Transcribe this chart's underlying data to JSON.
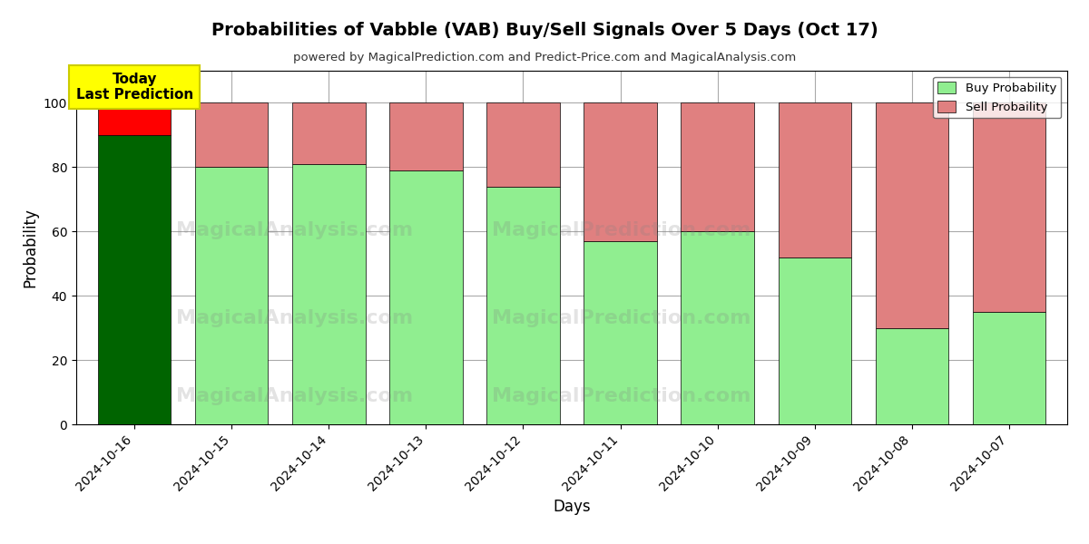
{
  "title": "Probabilities of Vabble (VAB) Buy/Sell Signals Over 5 Days (Oct 17)",
  "subtitle": "powered by MagicalPrediction.com and Predict-Price.com and MagicalAnalysis.com",
  "xlabel": "Days",
  "ylabel": "Probability",
  "dates": [
    "2024-10-16",
    "2024-10-15",
    "2024-10-14",
    "2024-10-13",
    "2024-10-12",
    "2024-10-11",
    "2024-10-10",
    "2024-10-09",
    "2024-10-08",
    "2024-10-07"
  ],
  "buy_probs": [
    90,
    80,
    81,
    79,
    74,
    57,
    60,
    52,
    30,
    35
  ],
  "sell_probs": [
    10,
    20,
    19,
    21,
    26,
    43,
    40,
    48,
    70,
    65
  ],
  "today_buy_color": "#006400",
  "today_sell_color": "#FF0000",
  "buy_color": "#90EE90",
  "sell_color": "#E08080",
  "today_box_color": "#FFFF00",
  "today_box_text": "Today\nLast Prediction",
  "today_box_text_color": "#000000",
  "ylim": [
    0,
    110
  ],
  "yticks": [
    0,
    20,
    40,
    60,
    80,
    100
  ],
  "dashed_line_y": 110,
  "watermark_texts": [
    "MagicalAnalysis.com",
    "MagicalPrediction.com"
  ],
  "legend_buy": "Buy Probability",
  "legend_sell": "Sell Probaility",
  "bar_edge_color": "#000000",
  "bar_edge_width": 0.5,
  "grid_color": "#AAAAAA",
  "background_color": "#FFFFFF"
}
